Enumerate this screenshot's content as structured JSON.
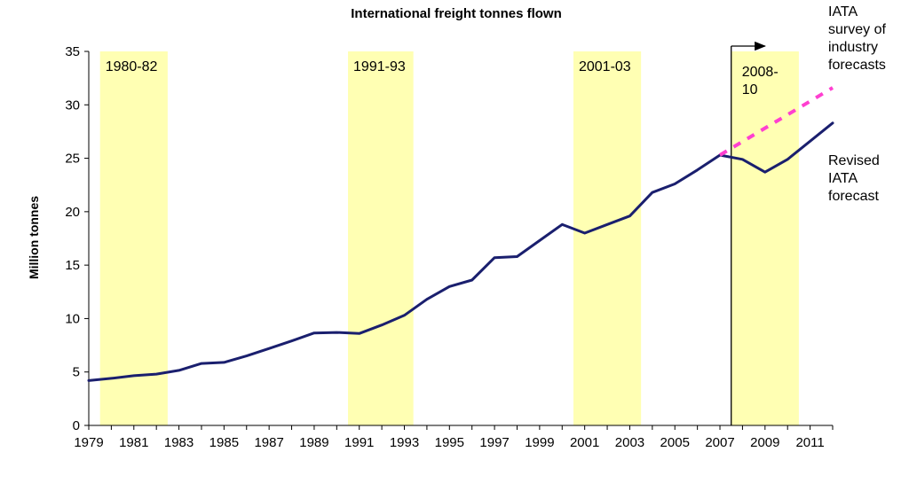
{
  "chart_data": {
    "type": "line",
    "title": "International freight tonnes flown",
    "xlabel": "",
    "ylabel": "Million tonnes",
    "xlim": [
      1979,
      2012
    ],
    "ylim": [
      0,
      35
    ],
    "yticks": [
      0,
      5,
      10,
      15,
      20,
      25,
      30,
      35
    ],
    "xticks": [
      1979,
      1981,
      1983,
      1985,
      1987,
      1989,
      1991,
      1993,
      1995,
      1997,
      1999,
      2001,
      2003,
      2005,
      2007,
      2009,
      2011
    ],
    "grid": false,
    "series": [
      {
        "name": "Revised IATA forecast",
        "color": "#1a1f6e",
        "style": "solid",
        "x": [
          1979,
          1980,
          1981,
          1982,
          1983,
          1984,
          1985,
          1986,
          1987,
          1988,
          1989,
          1990,
          1991,
          1992,
          1993,
          1994,
          1995,
          1996,
          1997,
          1998,
          1999,
          2000,
          2001,
          2002,
          2003,
          2004,
          2005,
          2006,
          2007,
          2008,
          2009,
          2010,
          2011,
          2012
        ],
        "y": [
          4.2,
          4.4,
          4.65,
          4.8,
          5.15,
          5.8,
          5.9,
          6.5,
          7.2,
          7.9,
          8.65,
          8.7,
          8.6,
          9.4,
          10.3,
          11.8,
          13.0,
          13.6,
          15.7,
          15.8,
          17.3,
          18.8,
          18.0,
          18.8,
          19.6,
          21.8,
          22.6,
          23.9,
          25.3,
          24.9,
          23.7,
          24.9,
          26.6,
          28.3
        ]
      },
      {
        "name": "IATA survey of industry forecasts",
        "color": "#ff3fd0",
        "style": "dashed",
        "x": [
          2007,
          2012
        ],
        "y": [
          25.3,
          31.6
        ]
      }
    ],
    "shaded_periods": [
      {
        "label": "1980-82",
        "start": 1979.5,
        "end": 1982.5
      },
      {
        "label": "1991-93",
        "start": 1990.5,
        "end": 1993.4
      },
      {
        "label": "2001-03",
        "start": 2000.5,
        "end": 2003.5
      },
      {
        "label": "2008-10",
        "start": 2007.5,
        "end": 2010.5
      }
    ],
    "shade_color": "#ffffb3",
    "annotations": [
      {
        "text_lines": [
          "IATA",
          "survey of",
          "industry",
          "forecasts"
        ],
        "target": "dashed-series"
      },
      {
        "text_lines": [
          "Revised",
          "IATA",
          "forecast"
        ],
        "target": "solid-series"
      }
    ],
    "marker_line": {
      "x": 2007.5,
      "arrow_to": 2009
    }
  }
}
